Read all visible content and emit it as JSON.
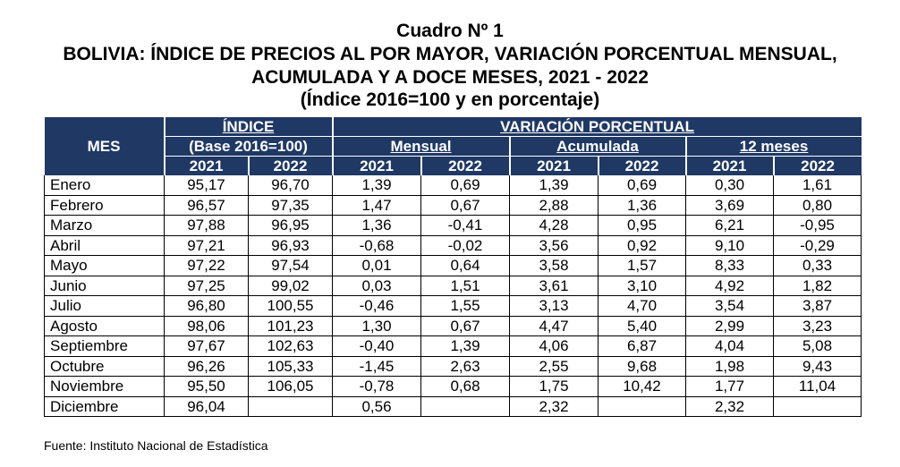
{
  "title": {
    "line1": "Cuadro Nº 1",
    "line2": "BOLIVIA: ÍNDICE DE PRECIOS AL POR MAYOR, VARIACIÓN PORCENTUAL MENSUAL,",
    "line3": "ACUMULADA Y A DOCE MESES, 2021 - 2022",
    "line4": "(Índice 2016=100 y en porcentaje)"
  },
  "header": {
    "mes": "MES",
    "indice": "ÍNDICE",
    "base": "(Base 2016=100)",
    "variacion": "VARIACIÓN PORCENTUAL",
    "mensual": "Mensual",
    "acumulada": "Acumulada",
    "doce": "12 meses",
    "years": [
      "2021",
      "2022",
      "2021",
      "2022",
      "2021",
      "2022",
      "2021",
      "2022"
    ]
  },
  "rows": [
    {
      "mes": "Enero",
      "v": [
        "95,17",
        "96,70",
        "1,39",
        "0,69",
        "1,39",
        "0,69",
        "0,30",
        "1,61"
      ]
    },
    {
      "mes": "Febrero",
      "v": [
        "96,57",
        "97,35",
        "1,47",
        "0,67",
        "2,88",
        "1,36",
        "3,69",
        "0,80"
      ]
    },
    {
      "mes": "Marzo",
      "v": [
        "97,88",
        "96,95",
        "1,36",
        "-0,41",
        "4,28",
        "0,95",
        "6,21",
        "-0,95"
      ]
    },
    {
      "mes": "Abril",
      "v": [
        "97,21",
        "96,93",
        "-0,68",
        "-0,02",
        "3,56",
        "0,92",
        "9,10",
        "-0,29"
      ]
    },
    {
      "mes": "Mayo",
      "v": [
        "97,22",
        "97,54",
        "0,01",
        "0,64",
        "3,58",
        "1,57",
        "8,33",
        "0,33"
      ]
    },
    {
      "mes": "Junio",
      "v": [
        "97,25",
        "99,02",
        "0,03",
        "1,51",
        "3,61",
        "3,10",
        "4,92",
        "1,82"
      ]
    },
    {
      "mes": "Julio",
      "v": [
        "96,80",
        "100,55",
        "-0,46",
        "1,55",
        "3,13",
        "4,70",
        "3,54",
        "3,87"
      ]
    },
    {
      "mes": "Agosto",
      "v": [
        "98,06",
        "101,23",
        "1,30",
        "0,67",
        "4,47",
        "5,40",
        "2,99",
        "3,23"
      ]
    },
    {
      "mes": "Septiembre",
      "v": [
        "97,67",
        "102,63",
        "-0,40",
        "1,39",
        "4,06",
        "6,87",
        "4,04",
        "5,08"
      ]
    },
    {
      "mes": "Octubre",
      "v": [
        "96,26",
        "105,33",
        "-1,45",
        "2,63",
        "2,55",
        "9,68",
        "1,98",
        "9,43"
      ]
    },
    {
      "mes": "Noviembre",
      "v": [
        "95,50",
        "106,05",
        "-0,78",
        "0,68",
        "1,75",
        "10,42",
        "1,77",
        "11,04"
      ]
    },
    {
      "mes": "Diciembre",
      "v": [
        "96,04",
        "",
        "0,56",
        "",
        "2,32",
        "",
        "2,32",
        ""
      ]
    }
  ],
  "footer": "Fuente: Instituto Nacional de Estadística"
}
